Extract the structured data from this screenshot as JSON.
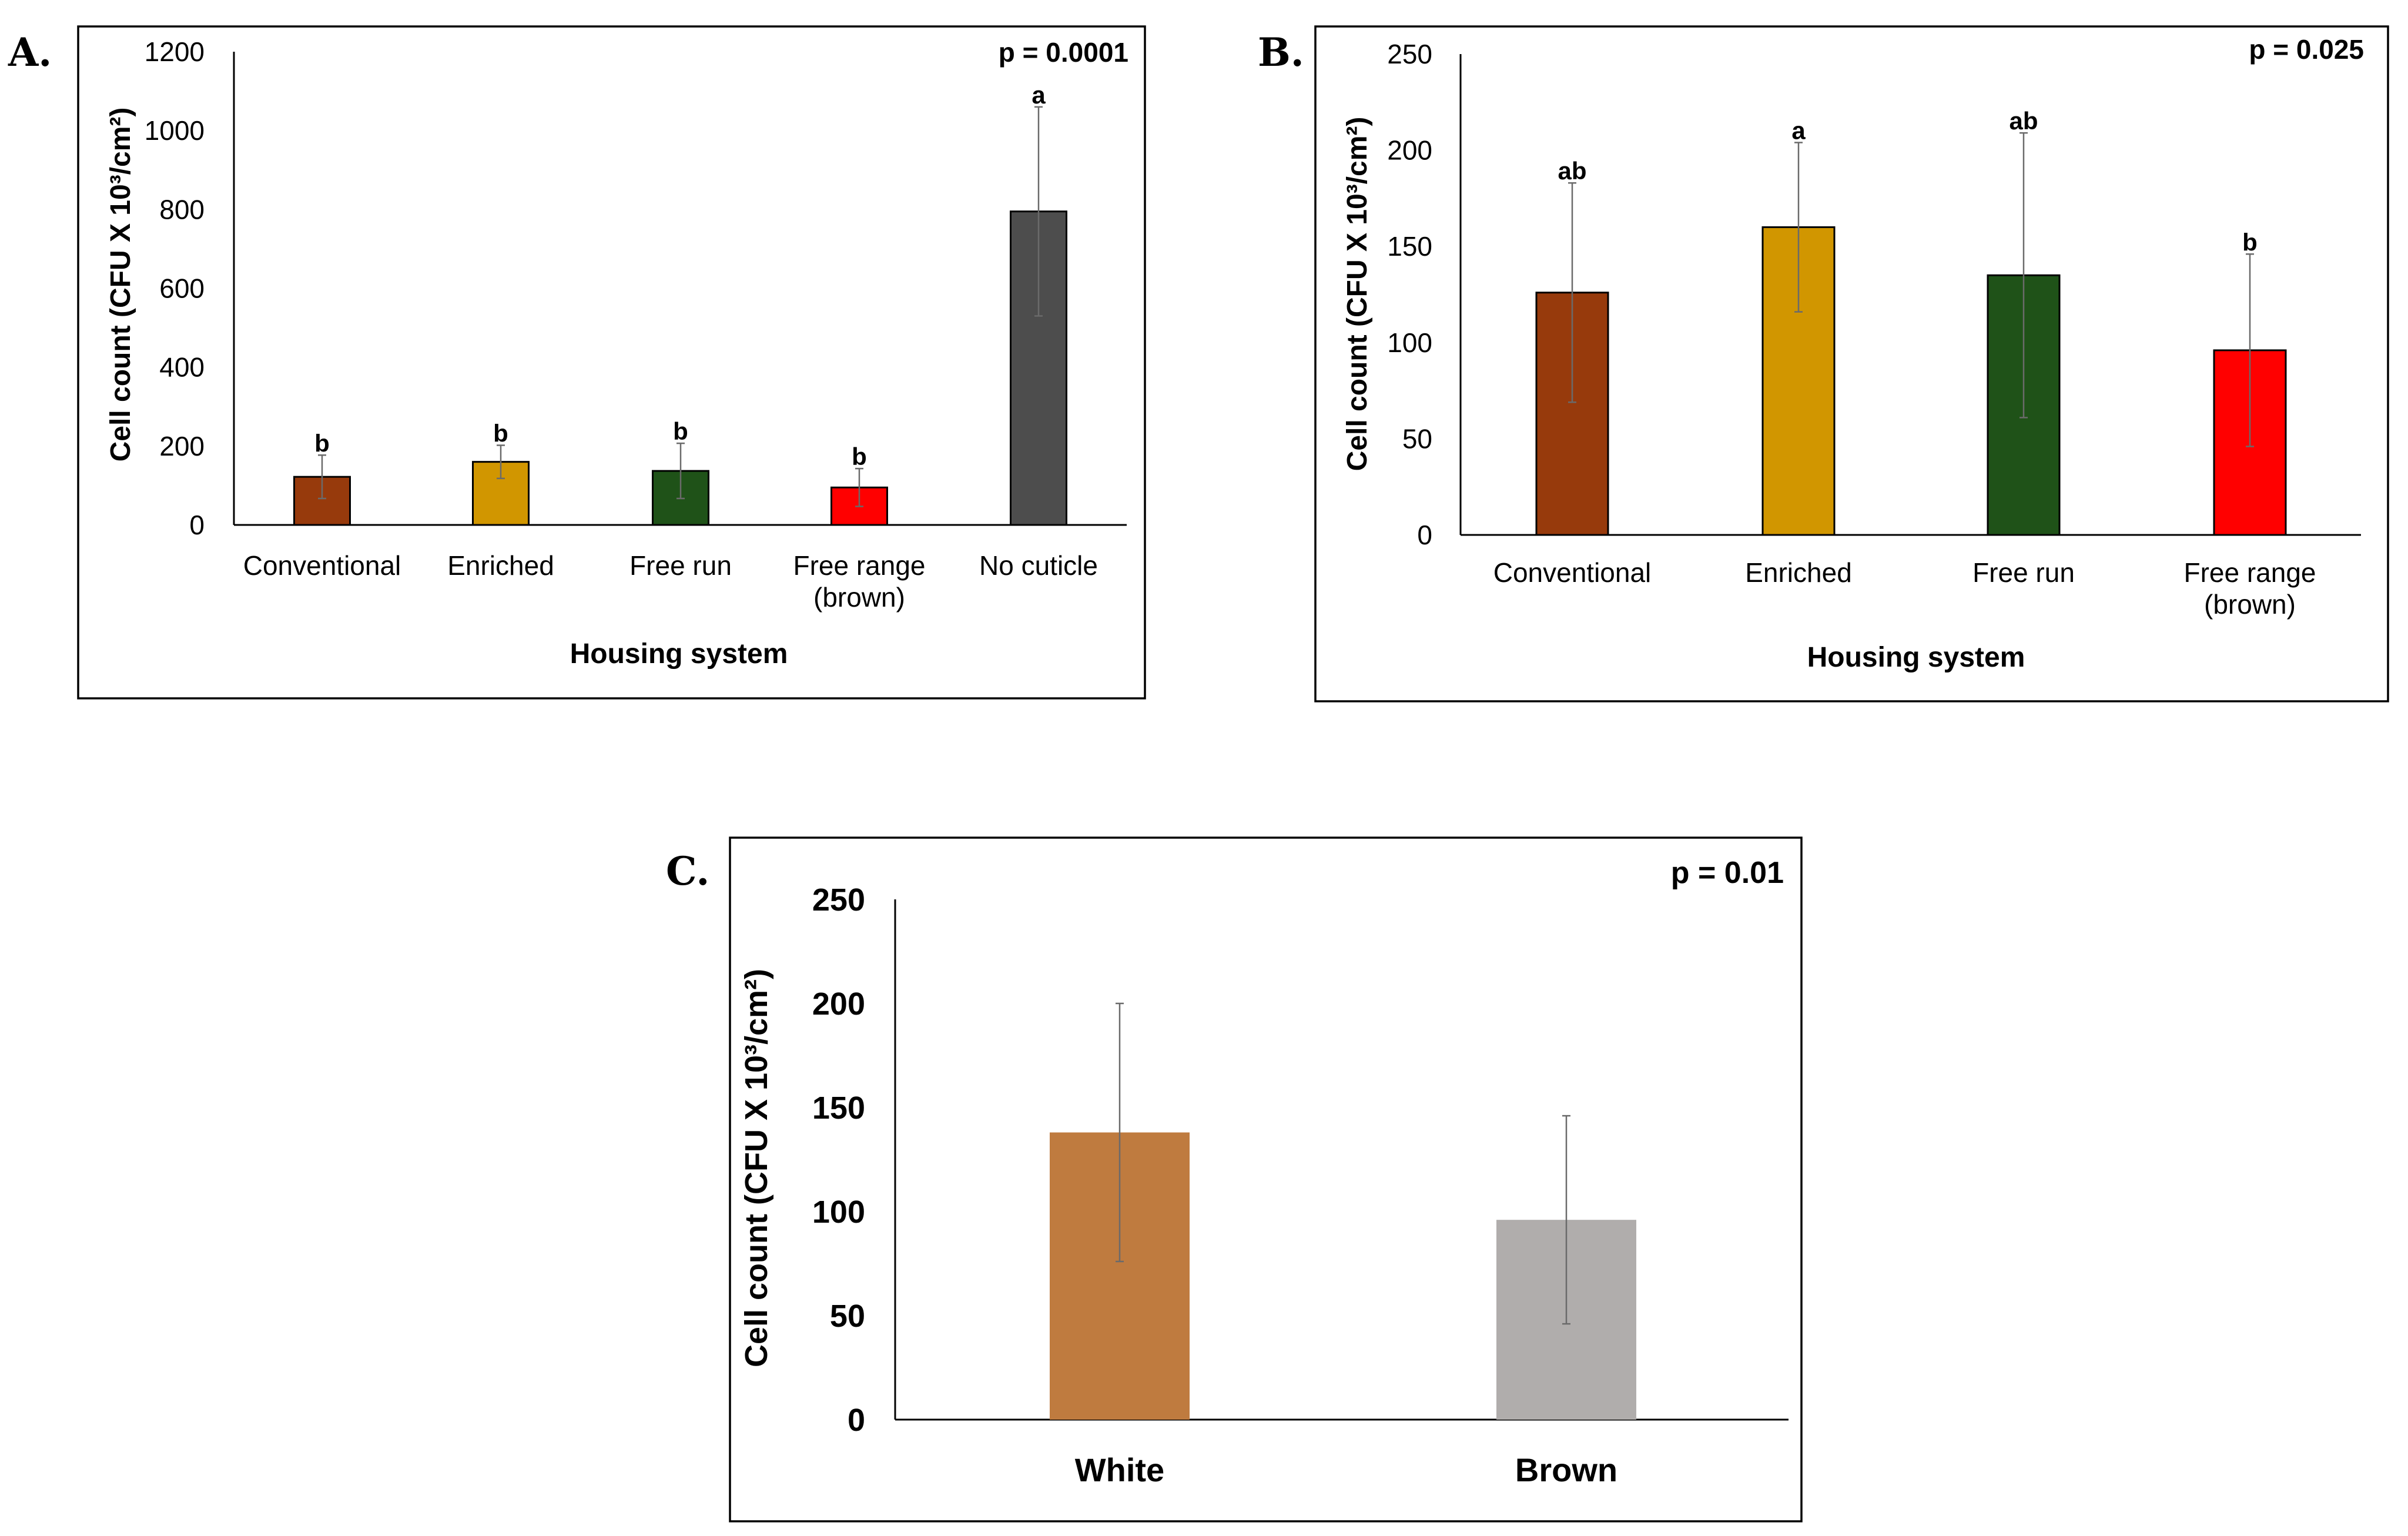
{
  "chart_data": [
    {
      "panel": "A.",
      "type": "bar",
      "title": "",
      "annotation": "p = 0.0001",
      "xlabel": "Housing system",
      "ylabel": "Cell count (CFU X 10³/cm²)",
      "ylim": [
        0,
        1200
      ],
      "yticks": [
        0,
        200,
        400,
        600,
        800,
        1000,
        1200
      ],
      "categories": [
        [
          "Conventional"
        ],
        [
          "Enriched"
        ],
        [
          "Free run"
        ],
        [
          "Free range",
          "(brown)"
        ],
        [
          "No cuticle"
        ]
      ],
      "values": [
        122,
        160,
        137,
        95,
        795
      ],
      "errors": [
        55,
        42,
        70,
        48,
        265
      ],
      "letters": [
        "b",
        "b",
        "b",
        "b",
        "a"
      ],
      "colors": [
        "#973a0c",
        "#d19600",
        "#1f5218",
        "#ff0000",
        "#4d4d4d"
      ],
      "grid": false
    },
    {
      "panel": "B.",
      "type": "bar",
      "title": "",
      "annotation": "p = 0.025",
      "xlabel": "Housing system",
      "ylabel": "Cell count (CFU X 10³/cm²)",
      "ylim": [
        0,
        250
      ],
      "yticks": [
        0,
        50,
        100,
        150,
        200,
        250
      ],
      "categories": [
        [
          "Conventional"
        ],
        [
          "Enriched"
        ],
        [
          "Free run"
        ],
        [
          "Free range",
          "(brown)"
        ]
      ],
      "values": [
        126,
        160,
        135,
        96
      ],
      "errors": [
        57,
        44,
        74,
        50
      ],
      "letters": [
        "ab",
        "a",
        "ab",
        "b"
      ],
      "colors": [
        "#973a0c",
        "#d19600",
        "#1f5218",
        "#ff0000"
      ],
      "grid": false
    },
    {
      "panel": "C.",
      "type": "bar",
      "title": "",
      "annotation": "p = 0.01",
      "xlabel": "",
      "ylabel": "Cell count (CFU X 10³/cm²)",
      "ylim": [
        0,
        250
      ],
      "yticks": [
        0,
        50,
        100,
        150,
        200,
        250
      ],
      "categories": [
        [
          "White"
        ],
        [
          "Brown"
        ]
      ],
      "values": [
        138,
        96
      ],
      "errors": [
        62,
        50
      ],
      "letters": [
        "",
        ""
      ],
      "colors": [
        "#bf7b3f",
        "#b0adac"
      ],
      "grid": false
    }
  ]
}
